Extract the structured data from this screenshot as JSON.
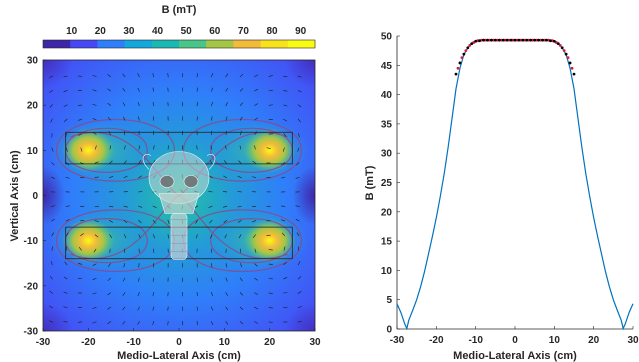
{
  "chart_data": [
    {
      "type": "heatmap",
      "title": "",
      "xlabel": "Medio-Lateral Axis (cm)",
      "ylabel": "Vertical Axis (cm)",
      "xlim": [
        -30,
        30
      ],
      "ylim": [
        -30,
        30
      ],
      "x_ticks": [
        "-30",
        "-20",
        "-10",
        "0",
        "10",
        "20",
        "30"
      ],
      "y_ticks": [
        "30",
        "20",
        "10",
        "0",
        "-10",
        "-20",
        "-30"
      ],
      "colorbar": {
        "label": "B (mT)",
        "min": 0,
        "max": 95,
        "ticks": [
          "10",
          "20",
          "30",
          "40",
          "50",
          "60",
          "70",
          "80",
          "90"
        ],
        "tick_values": [
          10,
          20,
          30,
          40,
          50,
          60,
          70,
          80,
          90
        ],
        "colors": [
          "#3e26a8",
          "#4748f4",
          "#2f7ffa",
          "#13a7dc",
          "#1ab8b3",
          "#49c58a",
          "#a5c546",
          "#f3bb3a",
          "#f7e21c",
          "#f9fb15"
        ]
      },
      "hotspots": [
        {
          "x": -20,
          "y": 10,
          "value": 92
        },
        {
          "x": 20,
          "y": 10,
          "value": 92
        },
        {
          "x": -20,
          "y": -10,
          "value": 92
        },
        {
          "x": 20,
          "y": -10,
          "value": 92
        }
      ],
      "coil_boxes": [
        {
          "x": [
            -25,
            25
          ],
          "y": [
            7,
            14
          ]
        },
        {
          "x": [
            -25,
            25
          ],
          "y": [
            -14,
            -7
          ]
        }
      ],
      "overlays": [
        "vector-field-arrows",
        "field-lines",
        "skull-model"
      ]
    },
    {
      "type": "line",
      "title": "",
      "xlabel": "Medio-Lateral Axis (cm)",
      "ylabel": "B (mT)",
      "xlim": [
        -30,
        30
      ],
      "ylim": [
        0,
        50
      ],
      "x_ticks": [
        "-30",
        "-20",
        "-10",
        "0",
        "10",
        "20",
        "30"
      ],
      "y_ticks": [
        "0",
        "5",
        "10",
        "15",
        "20",
        "25",
        "30",
        "35",
        "40",
        "45",
        "50"
      ],
      "colors": {
        "simulated": "#0072bd",
        "measured": "#000000",
        "fit": "#d81b3c"
      },
      "series": [
        {
          "style": "line",
          "x": [
            -30,
            -29,
            -28,
            -27.5,
            -27,
            -26,
            -25,
            -24,
            -23,
            -22,
            -21,
            -20,
            -19,
            -18,
            -17,
            -16,
            -15,
            -14,
            -13,
            -12,
            -11,
            -10,
            -9,
            -8,
            -6,
            -4,
            -2,
            0,
            2,
            4,
            6,
            8,
            9,
            10,
            11,
            12,
            13,
            14,
            15,
            16,
            17,
            18,
            19,
            20,
            21,
            22,
            23,
            24,
            25,
            26,
            27,
            27.5,
            28,
            29,
            30
          ],
          "y": [
            4.3,
            2.8,
            0.8,
            0.1,
            1.5,
            3.2,
            5.0,
            7.2,
            9.8,
            12.8,
            15.8,
            19.0,
            22.6,
            26.5,
            31.0,
            36.0,
            41.0,
            44.5,
            46.8,
            48.0,
            48.7,
            49.0,
            49.2,
            49.3,
            49.3,
            49.3,
            49.3,
            49.3,
            49.3,
            49.3,
            49.3,
            49.3,
            49.2,
            49.0,
            48.7,
            48.0,
            46.8,
            44.5,
            41.0,
            36.0,
            31.0,
            26.5,
            22.6,
            19.0,
            15.8,
            12.8,
            9.8,
            7.2,
            5.0,
            3.2,
            1.5,
            0.1,
            0.8,
            2.8,
            4.3
          ]
        },
        {
          "style": "points",
          "x": [
            -15,
            -14,
            -13,
            -12,
            -11,
            -10,
            -9,
            -8,
            -7,
            -6,
            -5,
            -4,
            -3,
            -2,
            -1,
            0,
            1,
            2,
            3,
            4,
            5,
            6,
            7,
            8,
            9,
            10,
            11,
            12,
            13,
            14,
            15
          ],
          "y": [
            43.5,
            45.4,
            46.9,
            48.0,
            48.7,
            49.1,
            49.2,
            49.3,
            49.3,
            49.3,
            49.3,
            49.3,
            49.3,
            49.3,
            49.3,
            49.3,
            49.3,
            49.3,
            49.3,
            49.3,
            49.3,
            49.3,
            49.3,
            49.3,
            49.2,
            49.1,
            48.7,
            48.0,
            46.9,
            45.4,
            43.5
          ]
        },
        {
          "style": "points",
          "x": [
            -14.5,
            -13.5,
            -12.5,
            -11.5,
            -10.5,
            -9.5,
            -8.5,
            -7.5,
            -6.5,
            -5.5,
            -4.5,
            -3.5,
            -2.5,
            -1.5,
            -0.5,
            0.5,
            1.5,
            2.5,
            3.5,
            4.5,
            5.5,
            6.5,
            7.5,
            8.5,
            9.5,
            10.5,
            11.5,
            12.5,
            13.5,
            14.5
          ],
          "y": [
            44.5,
            46.3,
            47.5,
            48.4,
            48.9,
            49.2,
            49.3,
            49.3,
            49.3,
            49.3,
            49.3,
            49.3,
            49.3,
            49.3,
            49.3,
            49.3,
            49.3,
            49.3,
            49.3,
            49.3,
            49.3,
            49.3,
            49.3,
            49.3,
            49.2,
            48.9,
            48.4,
            47.5,
            46.3,
            44.5
          ]
        }
      ]
    }
  ]
}
